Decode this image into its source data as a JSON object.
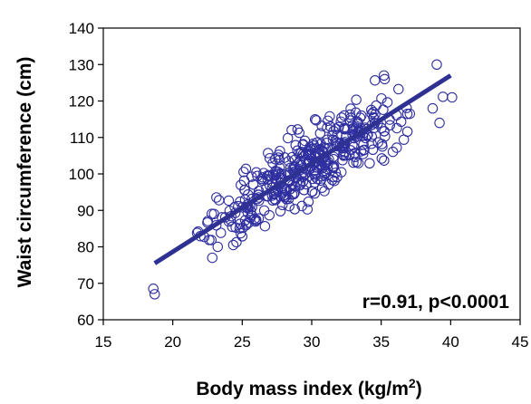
{
  "chart_data": {
    "type": "scatter",
    "title": "",
    "xlabel": "Body mass index (kg/m",
    "xlabel_sup": "2",
    "xlabel_end": ")",
    "ylabel": "Waist circumference (cm)",
    "xlim": [
      15,
      45
    ],
    "ylim": [
      60,
      140
    ],
    "xticks": [
      "15",
      "20",
      "25",
      "30",
      "35",
      "40",
      "45"
    ],
    "yticks": [
      "60",
      "70",
      "80",
      "90",
      "100",
      "110",
      "120",
      "130",
      "140"
    ],
    "grid": false,
    "legend": "none",
    "annotation": "r=0.91, p<0.0001",
    "marker_color": "#2f2fa0",
    "line_color": "#2e3192",
    "regression_line": {
      "x": [
        18.7,
        40.0
      ],
      "y": [
        75.5,
        127.0
      ]
    },
    "points_summary": {
      "n_approx": 420,
      "x_range": [
        18.6,
        40.1
      ],
      "y_range": [
        67,
        130
      ]
    },
    "outlier_points": [
      {
        "x": 18.6,
        "y": 68.5
      },
      {
        "x": 18.7,
        "y": 67.0
      },
      {
        "x": 35.2,
        "y": 127.0
      },
      {
        "x": 39.0,
        "y": 130.0
      },
      {
        "x": 40.1,
        "y": 121.0
      },
      {
        "x": 39.2,
        "y": 114.0
      }
    ]
  }
}
